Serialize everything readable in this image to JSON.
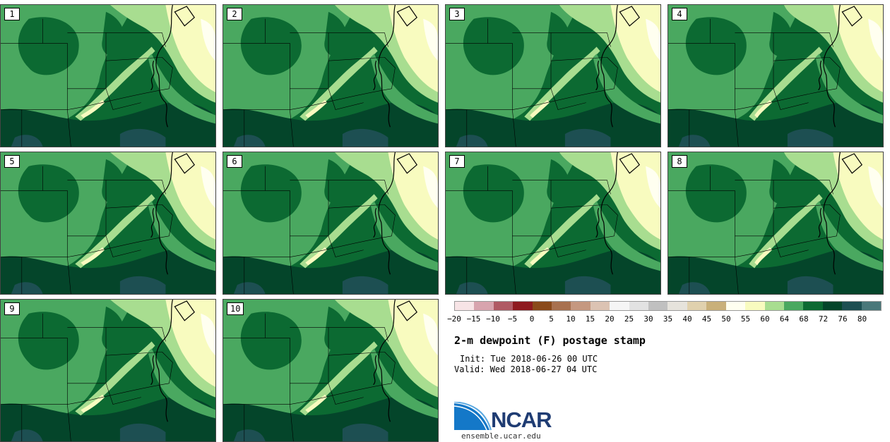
{
  "panels": [
    {
      "label": "1"
    },
    {
      "label": "2"
    },
    {
      "label": "3"
    },
    {
      "label": "4"
    },
    {
      "label": "5"
    },
    {
      "label": "6"
    },
    {
      "label": "7"
    },
    {
      "label": "8"
    },
    {
      "label": "9"
    },
    {
      "label": "10"
    }
  ],
  "colorbar": {
    "colors": [
      "#f7e4e6",
      "#d8a4ae",
      "#b05a64",
      "#8e1a1f",
      "#8a4a1a",
      "#a8714f",
      "#c59880",
      "#dcc3b3",
      "#f5f5f5",
      "#e2e2e2",
      "#c0c0c0",
      "#e6e3dc",
      "#e0d1ae",
      "#c9b07a",
      "#fffff0",
      "#f8fbbf",
      "#a8dd90",
      "#4aa860",
      "#0c6a32",
      "#04452a",
      "#1d4f52",
      "#4a787a"
    ],
    "ticks": [
      "−20",
      "−15",
      "−10",
      "−5",
      "0",
      "5",
      "10",
      "15",
      "20",
      "25",
      "30",
      "35",
      "40",
      "45",
      "50",
      "55",
      "60",
      "64",
      "68",
      "72",
      "76",
      "80"
    ]
  },
  "title": "2-m dewpoint (F) postage stamp",
  "init": "Init: Tue 2018-06-26 00 UTC",
  "valid": "Valid: Wed 2018-06-27 04 UTC",
  "logo_text": "NCAR",
  "site": "ensemble.ucar.edu"
}
